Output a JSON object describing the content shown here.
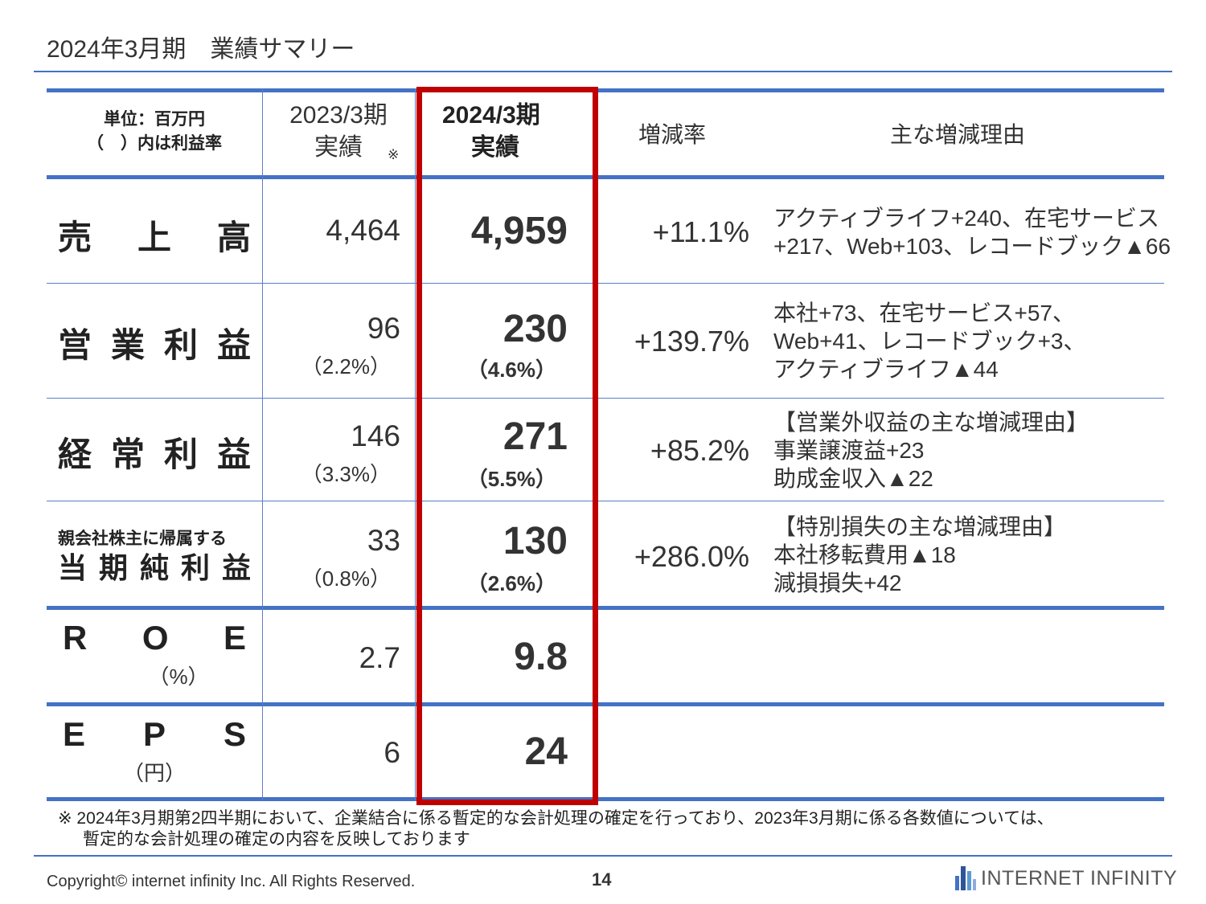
{
  "title": "2024年3月期　業績サマリー",
  "header": {
    "unit_line1": "単位：百万円",
    "unit_line2": "（　）内は利益率",
    "prev_line1": "2023/3期",
    "prev_line2": "実績",
    "prev_note_mark": "※",
    "curr_line1": "2024/3期",
    "curr_line2": "実績",
    "rate": "増減率",
    "reason": "主な増減理由"
  },
  "rows": [
    {
      "label_chars": [
        "売",
        "上",
        "高"
      ],
      "prev": "4,464",
      "prev_pct": "",
      "curr": "4,959",
      "curr_pct": "",
      "rate": "+11.1%",
      "reason": [
        "アクティブライフ+240、在宅サービス",
        "+217、Web+103、レコードブック▲66"
      ]
    },
    {
      "label_chars": [
        "営",
        "業",
        "利",
        "益"
      ],
      "prev": "96",
      "prev_pct": "（2.2%）",
      "curr": "230",
      "curr_pct": "（4.6%）",
      "rate": "+139.7%",
      "reason": [
        "本社+73、在宅サービス+57、",
        "Web+41、レコードブック+3、",
        "アクティブライフ▲44"
      ]
    },
    {
      "label_chars": [
        "経",
        "常",
        "利",
        "益"
      ],
      "prev": "146",
      "prev_pct": "（3.3%）",
      "curr": "271",
      "curr_pct": "（5.5%）",
      "rate": "+85.2%",
      "reason": [
        "【営業外収益の主な増減理由】",
        "事業譲渡益+23",
        "助成金収入▲22"
      ]
    },
    {
      "label_small": "親会社株主に帰属する",
      "label_chars": [
        "当",
        "期",
        "純",
        "利",
        "益"
      ],
      "prev": "33",
      "prev_pct": "（0.8%）",
      "curr": "130",
      "curr_pct": "（2.6%）",
      "rate": "+286.0%",
      "reason": [
        "【特別損失の主な増減理由】",
        "本社移転費用▲18",
        "減損損失+42"
      ]
    },
    {
      "label_chars": [
        "R",
        "O",
        "E"
      ],
      "label_sub": "（%）",
      "prev": "2.7",
      "curr": "9.8"
    },
    {
      "label_chars": [
        "E",
        "P",
        "S"
      ],
      "label_sub": "（円）",
      "prev": "6",
      "curr": "24"
    }
  ],
  "footnote": {
    "line1": "※ 2024年3月期第2四半期において、企業結合に係る暫定的な会計処理の確定を行っており、2023年3月期に係る各数値については、",
    "line2": "暫定的な会計処理の確定の内容を反映しております"
  },
  "footer": {
    "copyright": "Copyright© internet infinity Inc. All Rights Reserved.",
    "page": "14",
    "logo_text": "INTERNET INFINITY",
    "logo_icon": "building-logo-icon"
  },
  "colors": {
    "rule_blue": "#4472c4",
    "highlight_red": "#c00000"
  }
}
